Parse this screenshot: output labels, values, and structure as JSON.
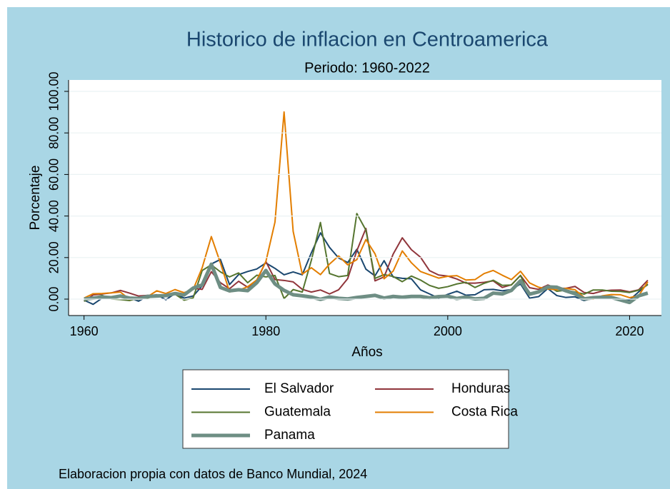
{
  "chart_data": {
    "type": "line",
    "title": "Historico de inflacion en Centroamerica",
    "subtitle": "Periodo: 1960-2022",
    "x_label": "Años",
    "y_label": "Porcentaje",
    "note": "Elaboracion propia con datos de Banco Mundial, 2024",
    "x": [
      1960,
      1961,
      1962,
      1963,
      1964,
      1965,
      1966,
      1967,
      1968,
      1969,
      1970,
      1971,
      1972,
      1973,
      1974,
      1975,
      1976,
      1977,
      1978,
      1979,
      1980,
      1981,
      1982,
      1983,
      1984,
      1985,
      1986,
      1987,
      1988,
      1989,
      1990,
      1991,
      1992,
      1993,
      1994,
      1995,
      1996,
      1997,
      1998,
      1999,
      2000,
      2001,
      2002,
      2003,
      2004,
      2005,
      2006,
      2007,
      2008,
      2009,
      2010,
      2011,
      2012,
      2013,
      2014,
      2015,
      2016,
      2017,
      2018,
      2019,
      2020,
      2021,
      2022
    ],
    "series": [
      {
        "name": "El Salvador",
        "color": "#1a476f",
        "line_width": 2,
        "values": [
          -0.5,
          -2.5,
          0.5,
          0.8,
          1.5,
          0.7,
          -1.0,
          1.5,
          2.1,
          -0.3,
          2.7,
          0.5,
          1.5,
          6.4,
          16.9,
          19.1,
          7.0,
          11.8,
          13.3,
          14.5,
          17.4,
          14.8,
          11.7,
          13.1,
          11.7,
          22.3,
          31.9,
          24.9,
          19.8,
          17.6,
          24.0,
          14.4,
          11.2,
          18.5,
          10.6,
          10.0,
          9.8,
          4.5,
          2.5,
          0.5,
          2.3,
          3.8,
          1.9,
          2.1,
          4.5,
          4.7,
          4.0,
          4.6,
          7.3,
          0.5,
          1.2,
          5.1,
          1.7,
          0.8,
          1.1,
          -0.7,
          0.6,
          1.0,
          1.1,
          0.1,
          -0.4,
          3.5,
          7.2
        ]
      },
      {
        "name": "Honduras",
        "color": "#90353b",
        "line_width": 2,
        "values": [
          -1.0,
          2.0,
          2.5,
          3.0,
          4.2,
          2.9,
          1.5,
          1.8,
          1.6,
          1.7,
          2.8,
          2.3,
          5.2,
          4.7,
          13.2,
          7.9,
          5.0,
          8.6,
          5.7,
          8.8,
          18.1,
          9.4,
          9.0,
          8.3,
          4.7,
          3.4,
          4.4,
          2.5,
          4.5,
          9.9,
          23.3,
          34.0,
          8.8,
          10.7,
          21.7,
          29.5,
          23.8,
          20.2,
          13.7,
          11.6,
          11.1,
          9.7,
          7.7,
          7.7,
          8.1,
          8.8,
          5.6,
          6.9,
          11.4,
          5.5,
          4.7,
          6.8,
          5.2,
          5.2,
          6.1,
          3.2,
          2.7,
          3.9,
          4.3,
          4.4,
          3.5,
          4.5,
          9.1
        ]
      },
      {
        "name": "Guatemala",
        "color": "#55752f",
        "line_width": 2,
        "values": [
          -1.0,
          0.7,
          1.8,
          0.1,
          -0.2,
          -0.7,
          0.5,
          0.5,
          1.9,
          2.1,
          2.4,
          -0.5,
          0.6,
          13.8,
          16.5,
          13.1,
          10.7,
          12.6,
          7.9,
          11.5,
          10.7,
          11.4,
          0.3,
          4.6,
          3.4,
          18.7,
          36.9,
          12.3,
          10.8,
          11.4,
          41.2,
          33.2,
          10.0,
          11.8,
          10.9,
          8.4,
          11.1,
          9.2,
          6.6,
          5.2,
          6.0,
          7.3,
          8.1,
          5.6,
          7.6,
          9.1,
          6.6,
          6.8,
          11.4,
          1.9,
          3.9,
          6.2,
          3.8,
          4.3,
          3.4,
          2.4,
          4.4,
          4.4,
          3.8,
          3.7,
          3.2,
          4.3,
          6.9
        ]
      },
      {
        "name": "Costa Rica",
        "color": "#e37e00",
        "line_width": 2,
        "values": [
          0.5,
          2.6,
          2.7,
          3.0,
          3.4,
          -0.1,
          0.2,
          1.2,
          4.0,
          2.7,
          4.6,
          3.1,
          4.6,
          15.2,
          30.1,
          17.4,
          3.5,
          4.2,
          6.0,
          9.2,
          18.1,
          37.1,
          90.1,
          32.6,
          12.0,
          15.1,
          11.8,
          16.9,
          20.8,
          16.5,
          19.0,
          28.7,
          21.8,
          9.8,
          13.5,
          23.2,
          17.5,
          13.3,
          11.7,
          10.1,
          11.0,
          11.3,
          9.2,
          9.4,
          12.3,
          13.8,
          11.5,
          9.4,
          13.4,
          7.8,
          5.7,
          4.9,
          4.5,
          5.2,
          4.5,
          0.8,
          0.0,
          1.6,
          2.2,
          2.1,
          0.7,
          1.7,
          8.3
        ]
      },
      {
        "name": "Panama",
        "color": "#6e8e84",
        "line_width": 5,
        "values": [
          0.0,
          0.5,
          1.0,
          0.7,
          1.5,
          0.5,
          0.3,
          1.3,
          1.5,
          1.7,
          2.7,
          2.0,
          5.3,
          6.9,
          16.8,
          5.6,
          4.0,
          4.5,
          4.1,
          7.9,
          13.8,
          7.3,
          4.2,
          2.1,
          1.6,
          1.0,
          -0.1,
          1.0,
          0.4,
          0.1,
          0.8,
          1.3,
          1.8,
          0.5,
          1.3,
          0.9,
          1.3,
          1.3,
          0.6,
          1.2,
          1.4,
          0.3,
          1.0,
          0.1,
          0.4,
          2.9,
          2.5,
          4.2,
          8.8,
          2.4,
          3.5,
          5.9,
          5.7,
          4.0,
          2.6,
          0.1,
          0.7,
          0.9,
          0.8,
          -0.4,
          -1.6,
          1.6,
          2.9
        ]
      }
    ],
    "xlim": [
      1958.3,
      2023.5
    ],
    "xticks": [
      1960,
      1980,
      2000,
      2020
    ],
    "ylim": [
      -7.9,
      105.5
    ],
    "yticks": [
      {
        "value": 0,
        "label": "0.00"
      },
      {
        "value": 20,
        "label": "20.00"
      },
      {
        "value": 40,
        "label": "40.00"
      },
      {
        "value": 60,
        "label": "60.00"
      },
      {
        "value": 80,
        "label": "80.00"
      },
      {
        "value": 100,
        "label": "100.00"
      }
    ],
    "grid": true
  }
}
